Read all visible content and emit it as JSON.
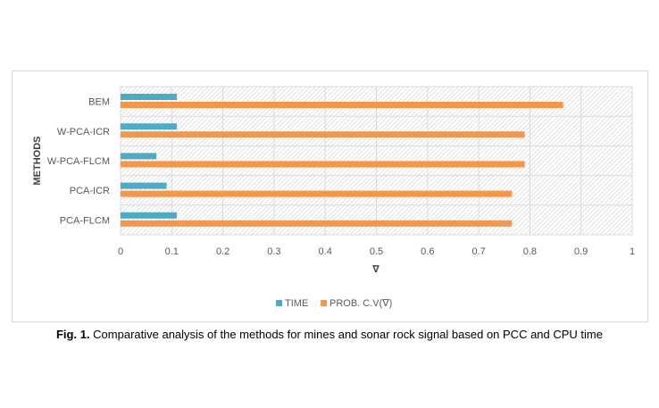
{
  "chart_data": {
    "type": "bar",
    "orientation": "horizontal",
    "categories": [
      "BEM",
      "W-PCA-ICR",
      "W-PCA-FLCM",
      "PCA-ICR",
      "PCA-FLCM"
    ],
    "series": [
      {
        "name": "TIME",
        "color": "#4bacc6",
        "values": [
          0.11,
          0.11,
          0.07,
          0.09,
          0.11
        ]
      },
      {
        "name": "PROB. C.V(∇)",
        "color": "#f79646",
        "values": [
          0.865,
          0.79,
          0.79,
          0.765,
          0.765
        ]
      }
    ],
    "xlabel": "∇",
    "ylabel": "METHODS",
    "xlim": [
      0,
      1
    ],
    "xticks": [
      "0",
      "0.1",
      "0.2",
      "0.3",
      "0.4",
      "0.5",
      "0.6",
      "0.7",
      "0.8",
      "0.9",
      "1"
    ],
    "grid": true,
    "legend_position": "bottom"
  },
  "caption": {
    "label": "Fig. 1.",
    "text": " Comparative analysis of the methods for mines and sonar rock signal based on PCC and CPU time"
  }
}
